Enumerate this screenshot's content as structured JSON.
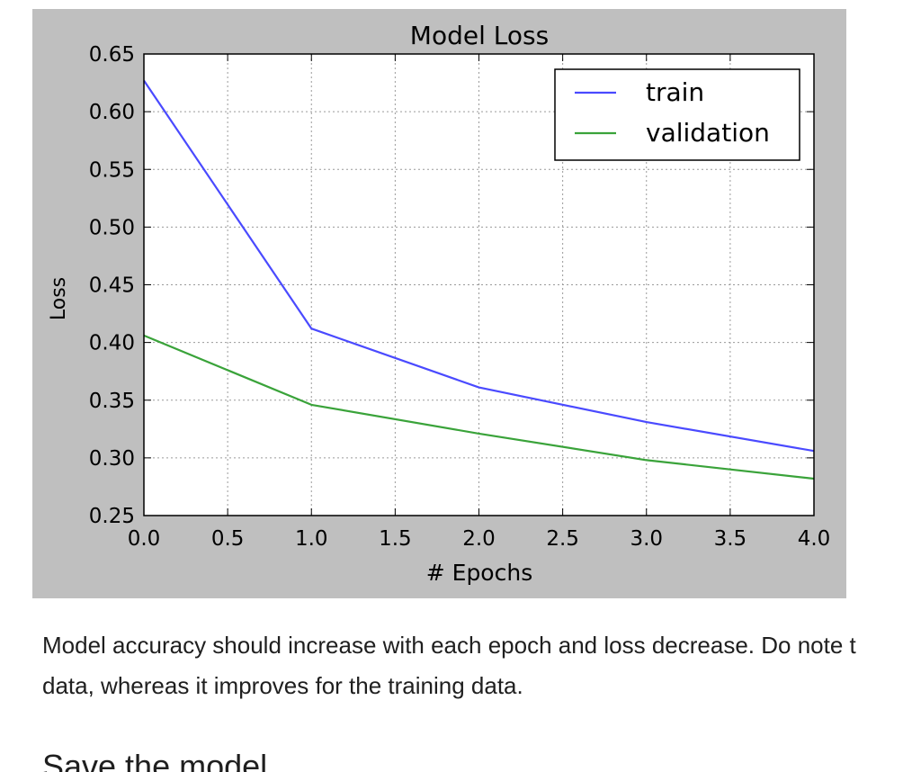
{
  "chart_data": {
    "type": "line",
    "title": "Model Loss",
    "xlabel": "# Epochs",
    "ylabel": "Loss",
    "xlim": [
      0.0,
      4.0
    ],
    "ylim": [
      0.25,
      0.65
    ],
    "xticks": [
      0.0,
      0.5,
      1.0,
      1.5,
      2.0,
      2.5,
      3.0,
      3.5,
      4.0
    ],
    "xtick_labels": [
      "0.0",
      "0.5",
      "1.0",
      "1.5",
      "2.0",
      "2.5",
      "3.0",
      "3.5",
      "4.0"
    ],
    "yticks": [
      0.25,
      0.3,
      0.35,
      0.4,
      0.45,
      0.5,
      0.55,
      0.6,
      0.65
    ],
    "ytick_labels": [
      "0.25",
      "0.30",
      "0.35",
      "0.40",
      "0.45",
      "0.50",
      "0.55",
      "0.60",
      "0.65"
    ],
    "grid": true,
    "legend_position": "top-right",
    "x": [
      0,
      1,
      2,
      3,
      4
    ],
    "series": [
      {
        "name": "train",
        "color": "#4a4aff",
        "values": [
          0.627,
          0.412,
          0.361,
          0.331,
          0.306
        ]
      },
      {
        "name": "validation",
        "color": "#3aa33a",
        "values": [
          0.406,
          0.346,
          0.321,
          0.298,
          0.282
        ]
      }
    ],
    "colors": {
      "figure_background": "#bfbfbf",
      "axes_background": "#ffffff",
      "grid": "#9a9a9a"
    }
  },
  "article": {
    "paragraph_line1": "Model accuracy should increase with each epoch and loss decrease. Do note t",
    "paragraph_line2": "data, whereas it improves for the training data.",
    "heading": "Save the model"
  }
}
